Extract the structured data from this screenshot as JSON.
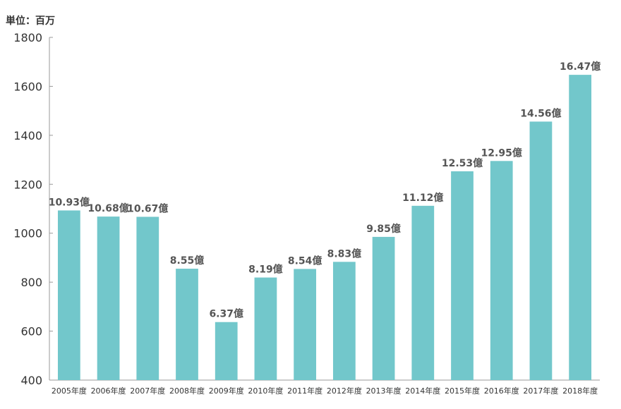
{
  "chart_data": {
    "type": "bar",
    "unit_label": "単位：百万",
    "categories": [
      "2005年度",
      "2006年度",
      "2007年度",
      "2008年度",
      "2009年度",
      "2010年度",
      "2011年度",
      "2012年度",
      "2013年度",
      "2014年度",
      "2015年度",
      "2016年度",
      "2017年度",
      "2018年度"
    ],
    "values": [
      1093,
      1068,
      1067,
      855,
      637,
      819,
      854,
      883,
      985,
      1112,
      1253,
      1295,
      1456,
      1647
    ],
    "data_labels": [
      "10.93億",
      "10.68億",
      "10.67億",
      "8.55億",
      "6.37億",
      "8.19億",
      "8.54億",
      "8.83億",
      "9.85億",
      "11.12億",
      "12.53億",
      "12.95億",
      "14.56億",
      "16.47億"
    ],
    "ylim": [
      400,
      1800
    ],
    "yticks": [
      400,
      600,
      800,
      1000,
      1200,
      1400,
      1600,
      1800
    ],
    "grid": false,
    "bar_color": "#72c7cb"
  }
}
